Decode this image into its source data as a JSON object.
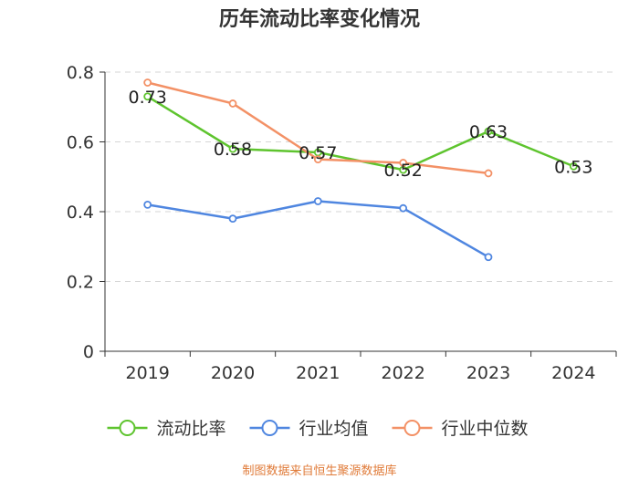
{
  "chart_data": {
    "type": "line",
    "title": "历年流动比率变化情况",
    "categories": [
      "2019",
      "2020",
      "2021",
      "2022",
      "2023",
      "2024"
    ],
    "ylim": [
      0,
      0.8
    ],
    "yticks": [
      "0",
      "0.2",
      "0.4",
      "0.6",
      "0.8"
    ],
    "ytick_values": [
      0,
      0.2,
      0.4,
      0.6,
      0.8
    ],
    "grid": true,
    "legend_position": "bottom",
    "series": [
      {
        "name": "流动比率",
        "color": "#5ec42e",
        "values": [
          0.73,
          0.58,
          0.57,
          0.52,
          0.63,
          0.53
        ],
        "labels": [
          "0.73",
          "0.58",
          "0.57",
          "0.52",
          "0.63",
          "0.53"
        ]
      },
      {
        "name": "行业均值",
        "color": "#4f86e0",
        "values": [
          0.42,
          0.38,
          0.43,
          0.41,
          0.27,
          null
        ]
      },
      {
        "name": "行业中位数",
        "color": "#f39166",
        "values": [
          0.77,
          0.71,
          0.55,
          0.54,
          0.51,
          null
        ]
      }
    ],
    "source": "制图数据来自恒生聚源数据库"
  }
}
